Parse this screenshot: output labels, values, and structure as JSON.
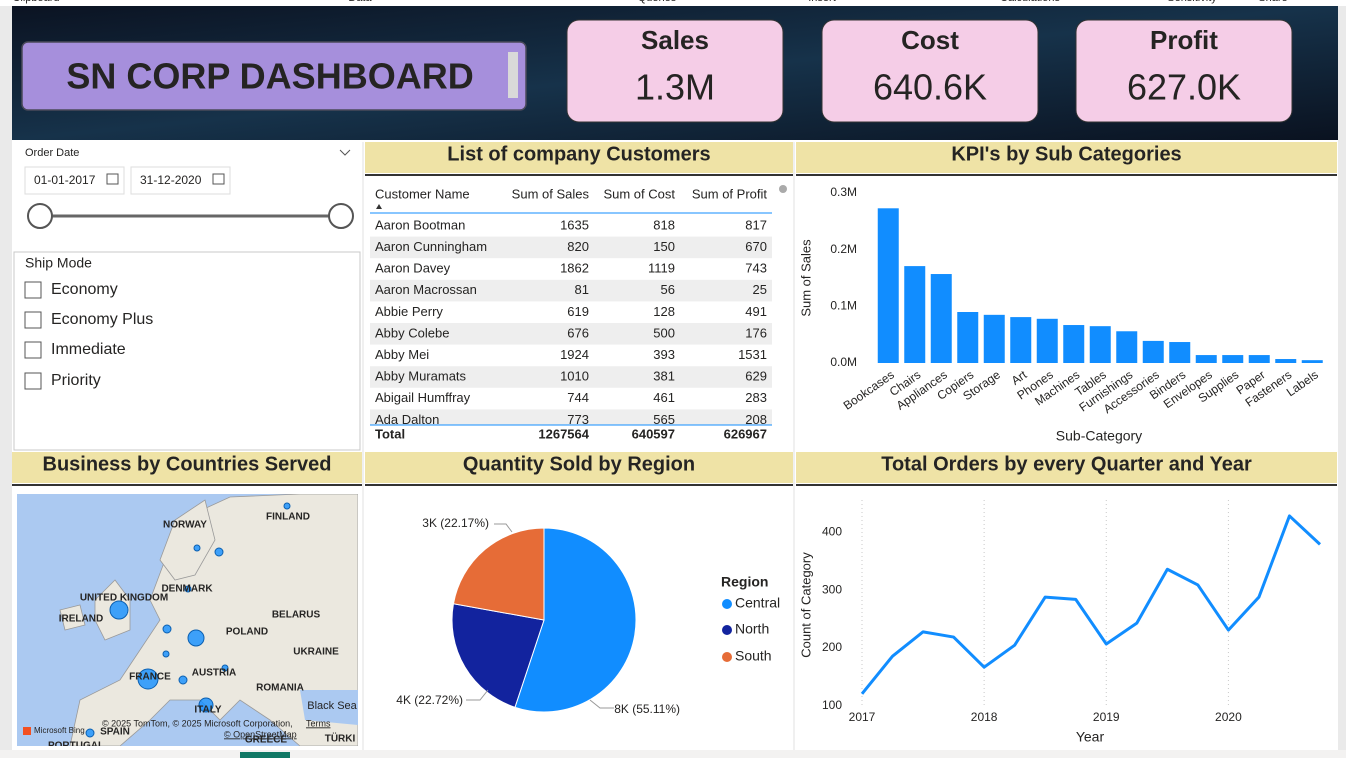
{
  "ribbon": [
    "Clipboard",
    "Data",
    "Queries",
    "Insert",
    "Calculations",
    "Sensitivity",
    "Share"
  ],
  "header": {
    "title": "SN CORP DASHBOARD",
    "kpis": [
      {
        "label": "Sales",
        "value": "1.3M"
      },
      {
        "label": "Cost",
        "value": "640.6K"
      },
      {
        "label": "Profit",
        "value": "627.0K"
      }
    ]
  },
  "date_slicer": {
    "label": "Order Date",
    "start": "01-01-2017",
    "end": "31-12-2020"
  },
  "ship_mode": {
    "title": "Ship Mode",
    "options": [
      "Economy",
      "Economy Plus",
      "Immediate",
      "Priority"
    ]
  },
  "table": {
    "title": "List of company Customers",
    "columns": [
      "Customer Name",
      "Sum of Sales",
      "Sum of Cost",
      "Sum of Profit"
    ],
    "rows": [
      [
        "Aaron Bootman",
        1635,
        818,
        817
      ],
      [
        "Aaron Cunningham",
        820,
        150,
        670
      ],
      [
        "Aaron Davey",
        1862,
        1119,
        743
      ],
      [
        "Aaron Macrossan",
        81,
        56,
        25
      ],
      [
        "Abbie Perry",
        619,
        128,
        491
      ],
      [
        "Abby Colebe",
        676,
        500,
        176
      ],
      [
        "Abby Mei",
        1924,
        393,
        1531
      ],
      [
        "Abby Muramats",
        1010,
        381,
        629
      ],
      [
        "Abigail Humffray",
        744,
        461,
        283
      ],
      [
        "Ada Dalton",
        773,
        565,
        208
      ]
    ],
    "total": [
      "Total",
      1267564,
      640597,
      626967
    ]
  },
  "map": {
    "title": "Business by Countries Served",
    "labels": [
      "NORWAY",
      "FINLAND",
      "UNITED KINGDOM",
      "DENMARK",
      "IRELAND",
      "BELARUS",
      "POLAND",
      "UKRAINE",
      "FRANCE",
      "AUSTRIA",
      "ROMANIA",
      "ITALY",
      "SPAIN",
      "Black Sea",
      "TÜRKI",
      "GREECE",
      "PORTUGAL"
    ],
    "attribution": "© 2025 TomTom, © 2025 Microsoft Corporation,",
    "terms": "Terms",
    "osm": "© OpenStreetMap",
    "brand": "Microsoft Bing"
  },
  "chart_data": [
    {
      "type": "bar",
      "title": "KPI's by Sub Categories",
      "x_label": "Sub-Category",
      "y_label": "Sum of Sales",
      "color": "#118dff",
      "categories": [
        "Bookcases",
        "Chairs",
        "Appliances",
        "Copiers",
        "Storage",
        "Art",
        "Phones",
        "Machines",
        "Tables",
        "Furnishings",
        "Accessories",
        "Binders",
        "Envelopes",
        "Supplies",
        "Paper",
        "Fasteners",
        "Labels"
      ],
      "values": [
        273000,
        171000,
        157000,
        90000,
        85000,
        81000,
        78000,
        67000,
        65000,
        56000,
        39000,
        37000,
        14000,
        14000,
        14000,
        7000,
        5000
      ],
      "ylim": [
        0,
        300000
      ],
      "yticks": [
        {
          "value": 0,
          "label": "0.0M"
        },
        {
          "value": 100000,
          "label": "0.1M"
        },
        {
          "value": 200000,
          "label": "0.2M"
        },
        {
          "value": 300000,
          "label": "0.3M"
        }
      ]
    },
    {
      "type": "pie",
      "title": "Quantity Sold by Region",
      "legend_title": "Region",
      "categories": [
        "Central",
        "North",
        "South"
      ],
      "values": [
        55.11,
        22.72,
        22.17
      ],
      "value_labels": [
        "8K (55.11%)",
        "4K (22.72%)",
        "3K (22.17%)"
      ],
      "colors": [
        "#118dff",
        "#12239e",
        "#e66c37"
      ]
    },
    {
      "type": "line",
      "title": "Total Orders by every Quarter and Year",
      "x_label": "Year",
      "y_label": "Count of Category",
      "color": "#118dff",
      "x": [
        2017,
        2017.25,
        2017.5,
        2017.75,
        2018,
        2018.25,
        2018.5,
        2018.75,
        2019,
        2019.25,
        2019.5,
        2019.75,
        2020,
        2020.25,
        2020.5,
        2020.75
      ],
      "values": [
        121,
        186,
        228,
        219,
        167,
        205,
        288,
        284,
        207,
        243,
        336,
        309,
        231,
        288,
        428,
        379
      ],
      "xlim": [
        2017,
        2020.75
      ],
      "xticks": [
        2017,
        2018,
        2019,
        2020
      ],
      "ylim": [
        100,
        440
      ],
      "yticks": [
        100,
        200,
        300,
        400
      ],
      "grid": true
    }
  ]
}
